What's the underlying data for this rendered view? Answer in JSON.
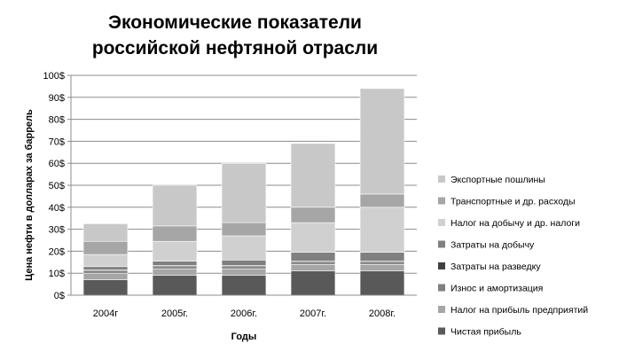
{
  "chart_data": {
    "type": "bar",
    "stacked": true,
    "title_lines": [
      "Экономические показатели",
      "российской нефтяной отрасли"
    ],
    "xlabel": "Годы",
    "ylabel": "Цена нефти в долларах за баррель",
    "ylim": [
      0,
      100
    ],
    "yticks": [
      "0$",
      "10$",
      "20$",
      "30$",
      "40$",
      "50$",
      "60$",
      "70$",
      "80$",
      "90$",
      "100$"
    ],
    "ytick_values": [
      0,
      10,
      20,
      30,
      40,
      50,
      60,
      70,
      80,
      90,
      100
    ],
    "grid": true,
    "legend_position": "right",
    "categories": [
      "2004г",
      "2005г.",
      "2006г.",
      "2007г.",
      "2008г."
    ],
    "series": [
      {
        "name": "Чистая прибыль",
        "color": "#595959",
        "values": [
          7,
          9,
          9,
          11,
          11
        ]
      },
      {
        "name": "Налог на прибыль предприятий",
        "color": "#a6a6a6",
        "values": [
          3,
          3,
          3,
          3,
          3
        ]
      },
      {
        "name": "Износ и амортизация",
        "color": "#7f7f7f",
        "values": [
          1,
          1,
          1,
          1,
          1
        ]
      },
      {
        "name": "Затраты на разведку",
        "color": "#404040",
        "values": [
          0.5,
          0.5,
          0.5,
          0.5,
          0.5
        ]
      },
      {
        "name": "Затраты на добычу",
        "color": "#808080",
        "values": [
          1.5,
          2,
          2.5,
          4,
          4
        ]
      },
      {
        "name": "Налог  на добычу и др. налоги",
        "color": "#d0d0d0",
        "values": [
          5.5,
          9,
          11,
          13.5,
          20.5
        ]
      },
      {
        "name": "Транспортные и др. расходы",
        "color": "#a6a6a6",
        "values": [
          6,
          7,
          6,
          7,
          6
        ]
      },
      {
        "name": "Экспортные пошлины",
        "color": "#c8c8c8",
        "values": [
          8,
          18.5,
          27,
          29,
          48
        ]
      }
    ]
  }
}
